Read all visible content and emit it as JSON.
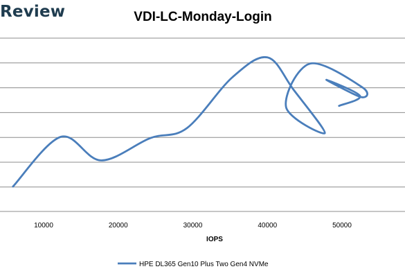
{
  "watermark": "Review",
  "chart_data": {
    "type": "line",
    "title": "VDI-LC-Monday-Login",
    "xlabel": "IOPS",
    "ylabel": "",
    "xlim": [
      5000,
      52500
    ],
    "x_ticks": [
      10000,
      20000,
      30000,
      40000,
      50000
    ],
    "y_gridlines": 7,
    "grid": true,
    "legend_position": "bottom",
    "series": [
      {
        "name": "HPE DL365 Gen10 Plus Two Gen4 NVMe",
        "color": "#4a7ebb",
        "points": [
          {
            "x": 5900,
            "y": 0.0
          },
          {
            "x": 12300,
            "y": 2.0
          },
          {
            "x": 17700,
            "y": 1.05
          },
          {
            "x": 24300,
            "y": 1.95
          },
          {
            "x": 29200,
            "y": 2.35
          },
          {
            "x": 35300,
            "y": 4.4
          },
          {
            "x": 40000,
            "y": 5.2
          },
          {
            "x": 43500,
            "y": 3.9
          },
          {
            "x": 47700,
            "y": 2.15
          },
          {
            "x": 42500,
            "y": 3.2
          },
          {
            "x": 45700,
            "y": 4.95
          },
          {
            "x": 52700,
            "y": 4.0
          },
          {
            "x": 52600,
            "y": 3.6
          },
          {
            "x": 47900,
            "y": 4.3
          },
          {
            "x": 52400,
            "y": 3.65
          },
          {
            "x": 49600,
            "y": 3.25
          }
        ]
      }
    ]
  }
}
